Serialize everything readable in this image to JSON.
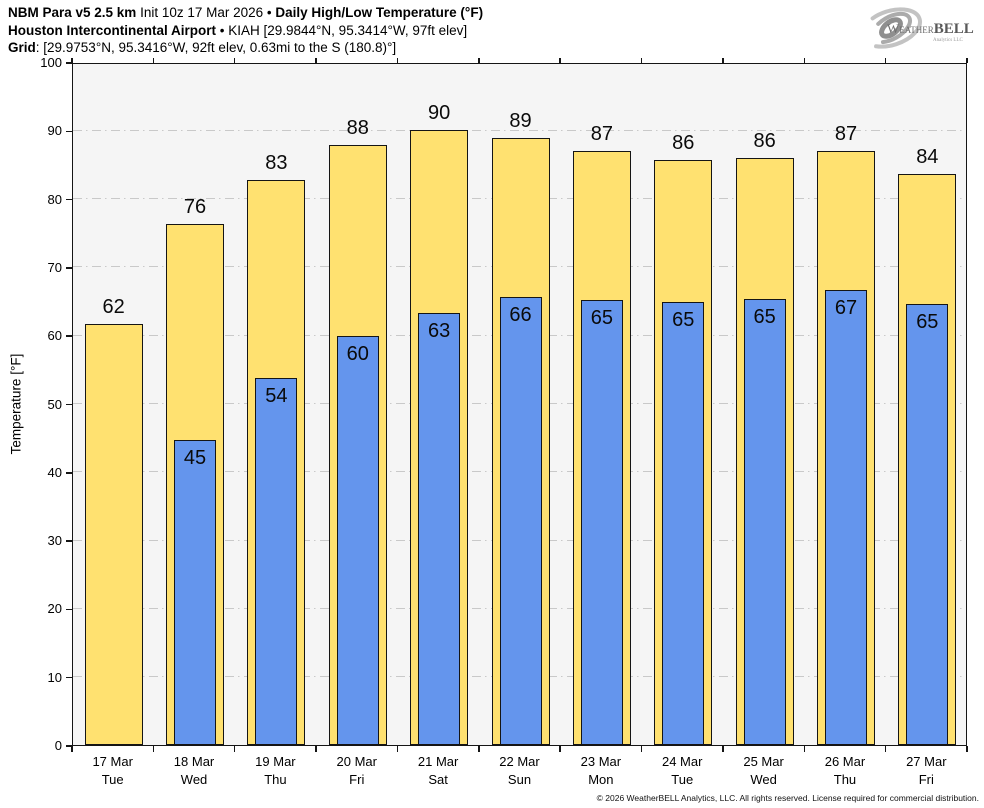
{
  "header": {
    "line1": {
      "model": "NBM Para v5 2.5 km",
      "init": " Init 10z 17 Mar 2026 ",
      "bullet": "• ",
      "product": "Daily High/Low Temperature (°F)"
    },
    "line2": {
      "station": "Houston Intercontinental Airport",
      "details": " • KIAH [29.9844°N, 95.3414°W, 97ft elev]"
    },
    "line3": {
      "label": "Grid",
      "details": ": [29.9753°N, 95.3416°W, 92ft elev, 0.63mi to the S (180.8)°]"
    }
  },
  "logo": {
    "weather": "Weather",
    "bell": "BELL",
    "sub": "Analytics LLC"
  },
  "chart_data": {
    "type": "bar",
    "title": "Daily High/Low Temperature (°F)",
    "ylabel": "Temperature [°F]",
    "ylim": [
      0,
      100
    ],
    "ytick_interval": 10,
    "grid": "horizontal dash-dot lines every 10°F",
    "legend_position": "none",
    "plot_bg": "#f5f5f5",
    "grid_color": "#c9c9c9",
    "categories": [
      {
        "date": "17 Mar",
        "dow": "Tue"
      },
      {
        "date": "18 Mar",
        "dow": "Wed"
      },
      {
        "date": "19 Mar",
        "dow": "Thu"
      },
      {
        "date": "20 Mar",
        "dow": "Fri"
      },
      {
        "date": "21 Mar",
        "dow": "Sat"
      },
      {
        "date": "22 Mar",
        "dow": "Sun"
      },
      {
        "date": "23 Mar",
        "dow": "Mon"
      },
      {
        "date": "24 Mar",
        "dow": "Tue"
      },
      {
        "date": "25 Mar",
        "dow": "Wed"
      },
      {
        "date": "26 Mar",
        "dow": "Thu"
      },
      {
        "date": "27 Mar",
        "dow": "Fri"
      }
    ],
    "series": [
      {
        "name": "High",
        "color": "#ffe170",
        "values": [
          62,
          76,
          83,
          88,
          90,
          89,
          87,
          86,
          86,
          87,
          84
        ],
        "bar_values": [
          61.7,
          76.3,
          82.7,
          87.9,
          90.1,
          88.9,
          87.0,
          85.7,
          86.0,
          87.0,
          83.6
        ]
      },
      {
        "name": "Low",
        "color": "#6495ed",
        "values": [
          null,
          45,
          54,
          60,
          63,
          66,
          65,
          65,
          65,
          67,
          65
        ],
        "bar_values": [
          null,
          44.7,
          53.7,
          59.9,
          63.3,
          65.6,
          65.2,
          64.8,
          65.3,
          66.6,
          64.6
        ]
      }
    ]
  },
  "footer": "© 2026 WeatherBELL Analytics, LLC. All rights reserved. License required for commercial distribution."
}
